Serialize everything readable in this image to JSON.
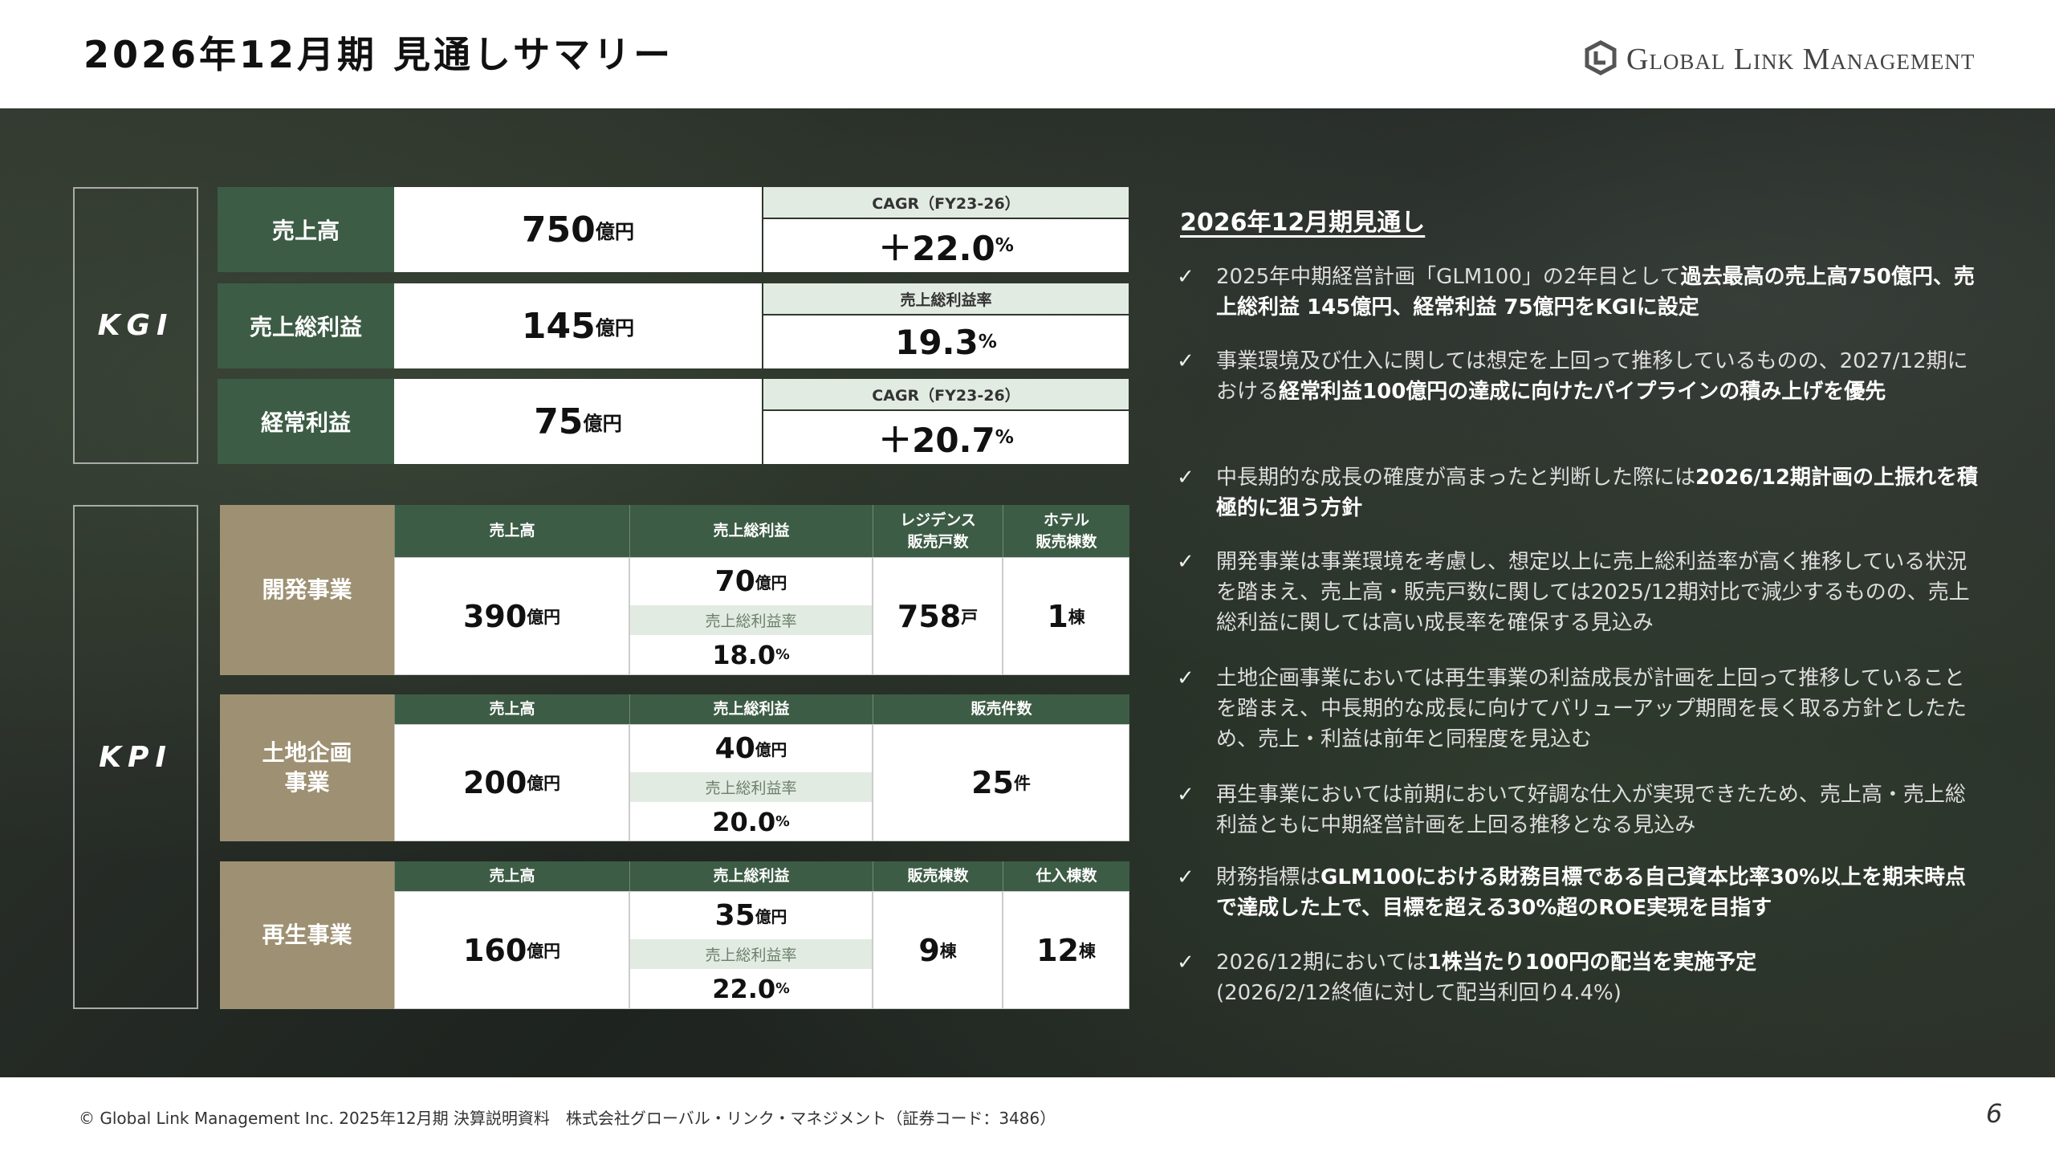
{
  "header": {
    "title": "2026年12月期 見通しサマリー",
    "logo": "Global Link Management"
  },
  "kgi": {
    "label": "KGI",
    "rows": [
      {
        "name": "売上高",
        "value": "750",
        "unit": "億円",
        "sub_label": "CAGR（FY23-26）",
        "sub_value": "＋22.0",
        "sub_unit": "%"
      },
      {
        "name": "売上総利益",
        "value": "145",
        "unit": "億円",
        "sub_label": "売上総利益率",
        "sub_value": "19.3",
        "sub_unit": "%"
      },
      {
        "name": "経常利益",
        "value": "75",
        "unit": "億円",
        "sub_label": "CAGR（FY23-26）",
        "sub_value": "＋20.7",
        "sub_unit": "%"
      }
    ]
  },
  "kpi": {
    "label": "KPI",
    "segments": [
      {
        "name": "開発事業",
        "columns": [
          "売上高",
          "売上総利益",
          "レジデンス\n販売戸数",
          "ホテル\n販売棟数"
        ],
        "sales": {
          "value": "390",
          "unit": "億円"
        },
        "gross": {
          "value": "70",
          "unit": "億円",
          "margin_label": "売上総利益率",
          "margin": "18.0",
          "margin_unit": "%"
        },
        "extras": [
          {
            "value": "758",
            "unit": "戸"
          },
          {
            "value": "1",
            "unit": "棟"
          }
        ]
      },
      {
        "name": "土地企画\n事業",
        "columns": [
          "売上高",
          "売上総利益",
          "販売件数"
        ],
        "sales": {
          "value": "200",
          "unit": "億円"
        },
        "gross": {
          "value": "40",
          "unit": "億円",
          "margin_label": "売上総利益率",
          "margin": "20.0",
          "margin_unit": "%"
        },
        "extras": [
          {
            "value": "25",
            "unit": "件"
          }
        ]
      },
      {
        "name": "再生事業",
        "columns": [
          "売上高",
          "売上総利益",
          "販売棟数",
          "仕入棟数"
        ],
        "sales": {
          "value": "160",
          "unit": "億円"
        },
        "gross": {
          "value": "35",
          "unit": "億円",
          "margin_label": "売上総利益率",
          "margin": "22.0",
          "margin_unit": "%"
        },
        "extras": [
          {
            "value": "9",
            "unit": "棟"
          },
          {
            "value": "12",
            "unit": "棟"
          }
        ]
      }
    ]
  },
  "outlook": {
    "heading": "2026年12月期見通し",
    "check": "✓",
    "bullets": [
      {
        "parts": [
          {
            "text": "2025年中期経営計画「GLM100」の2年目として",
            "bold": false
          },
          {
            "text": "過去最高の売上高750億円、売上総利益 145億円、経常利益 75億円をKGIに設定",
            "bold": true
          }
        ]
      },
      {
        "parts": [
          {
            "text": "事業環境及び仕入に関しては想定を上回って推移しているものの、2027/12期における",
            "bold": false
          },
          {
            "text": "経常利益100億円の達成に向けたパイプラインの積み上げを優先",
            "bold": true
          }
        ]
      },
      {
        "parts": [
          {
            "text": "中長期的な成長の確度が高まったと判断した際には",
            "bold": false
          },
          {
            "text": "2026/12期計画の上振れを積極的に狙う方針",
            "bold": true
          }
        ]
      },
      {
        "parts": [
          {
            "text": "開発事業は事業環境を考慮し、想定以上に売上総利益率が高く推移している状況を踏まえ、売上高・販売戸数に関しては2025/12期対比で減少するものの、売上総利益に関しては高い成長率を確保する見込み",
            "bold": false
          }
        ]
      },
      {
        "parts": [
          {
            "text": "土地企画事業においては再生事業の利益成長が計画を上回って推移していることを踏まえ、中長期的な成長に向けてバリューアップ期間を長く取る方針としたため、売上・利益は前年と同程度を見込む",
            "bold": false
          }
        ]
      },
      {
        "parts": [
          {
            "text": "再生事業においては前期において好調な仕入が実現できたため、売上高・売上総利益ともに中期経営計画を上回る推移となる見込み",
            "bold": false
          }
        ]
      },
      {
        "parts": [
          {
            "text": "財務指標は",
            "bold": false
          },
          {
            "text": "GLM100における財務目標である自己資本比率30%以上を期末時点で達成した上で、目標を超える30%超のROE実現を目指す",
            "bold": true
          }
        ]
      },
      {
        "parts": [
          {
            "text": "2026/12期においては",
            "bold": false
          },
          {
            "text": "1株当たり100円の配当を実施予定",
            "bold": true
          },
          {
            "text": "\n(2026/2/12終値に対して配当利回り4.4%)",
            "bold": false
          }
        ]
      }
    ]
  },
  "footer": {
    "text": "© Global Link Management Inc. 2025年12月期 決算説明資料　株式会社グローバル・リンク・マネジメント（証券コード：3486）",
    "page": "6"
  }
}
